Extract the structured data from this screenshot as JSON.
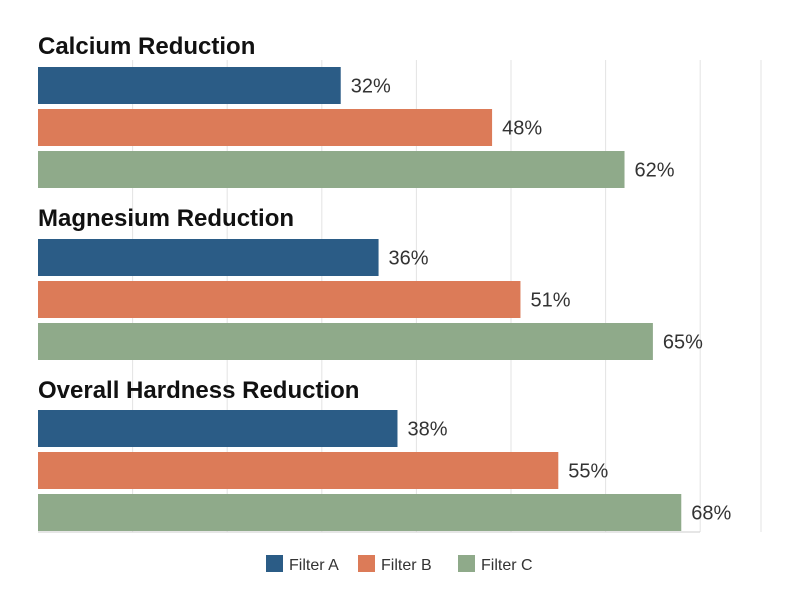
{
  "chart_data": {
    "type": "bar",
    "orientation": "horizontal",
    "categories": [
      "Calcium Reduction",
      "Magnesium Reduction",
      "Overall Hardness Reduction"
    ],
    "series": [
      {
        "name": "Filter A",
        "values": [
          32,
          36,
          38
        ],
        "color": "#2b5c86"
      },
      {
        "name": "Filter B",
        "values": [
          48,
          51,
          55
        ],
        "color": "#dc7b58"
      },
      {
        "name": "Filter C",
        "values": [
          62,
          65,
          68
        ],
        "color": "#8faa8a"
      }
    ],
    "value_labels": [
      [
        "32%",
        "36%",
        "38%"
      ],
      [
        "48%",
        "51%",
        "55%"
      ],
      [
        "62%",
        "65%",
        "68%"
      ]
    ],
    "xlim": [
      0,
      76
    ],
    "grid": true,
    "legend_position": "bottom-center"
  }
}
